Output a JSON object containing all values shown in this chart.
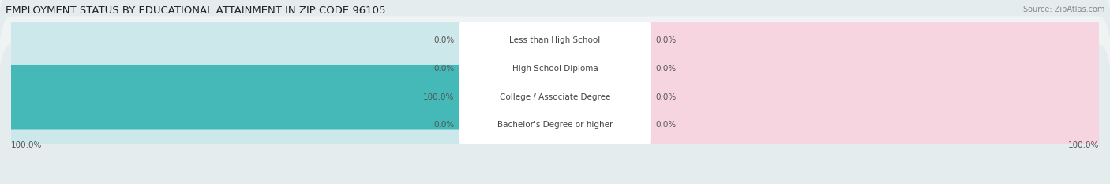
{
  "title": "EMPLOYMENT STATUS BY EDUCATIONAL ATTAINMENT IN ZIP CODE 96105",
  "source": "Source: ZipAtlas.com",
  "categories": [
    "Less than High School",
    "High School Diploma",
    "College / Associate Degree",
    "Bachelor's Degree or higher"
  ],
  "in_labor_force": [
    0.0,
    0.0,
    100.0,
    0.0
  ],
  "unemployed": [
    0.0,
    0.0,
    0.0,
    0.0
  ],
  "labor_force_color": "#45b8b8",
  "unemployed_color": "#f5a0b8",
  "lf_bg_color": "#cde8ea",
  "un_bg_color": "#f7d5e0",
  "row_bg_even": "#eff3f4",
  "row_bg_odd": "#e5ecee",
  "title_fontsize": 9.5,
  "source_fontsize": 7,
  "value_fontsize": 7.5,
  "category_fontsize": 7.5,
  "legend_fontsize": 8,
  "bottom_left_label": "100.0%",
  "bottom_right_label": "100.0%"
}
